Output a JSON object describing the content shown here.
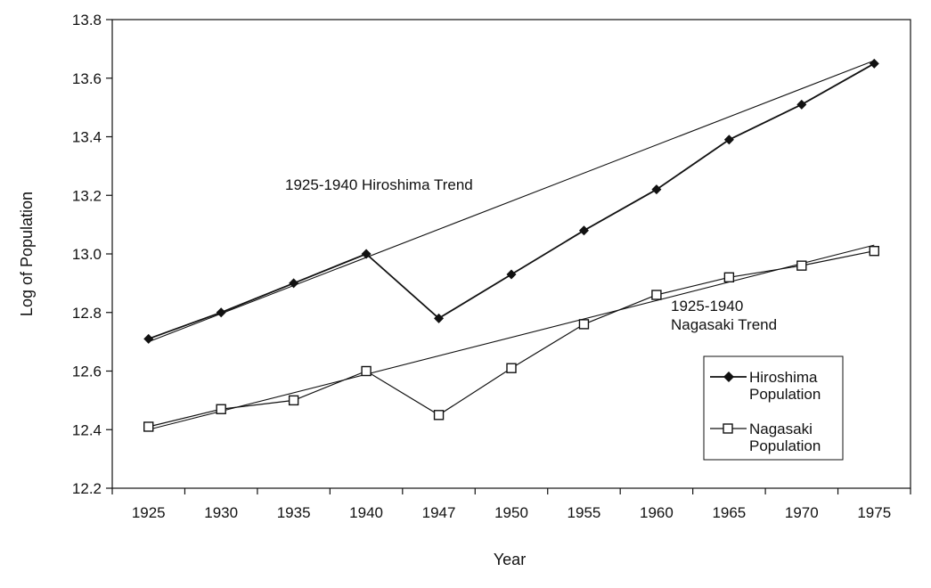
{
  "chart_data": {
    "type": "line",
    "title": "",
    "xlabel": "Year",
    "ylabel": "Log of Population",
    "categories": [
      "1925",
      "1930",
      "1935",
      "1940",
      "1947",
      "1950",
      "1955",
      "1960",
      "1965",
      "1970",
      "1975"
    ],
    "ylim": [
      12.2,
      13.8
    ],
    "yticks": [
      "12.2",
      "12.4",
      "12.6",
      "12.8",
      "13.0",
      "13.2",
      "13.4",
      "13.6",
      "13.8"
    ],
    "grid": false,
    "series": [
      {
        "name": "Hiroshima Population",
        "marker": "filled-diamond",
        "values": [
          12.71,
          12.8,
          12.9,
          13.0,
          12.78,
          12.93,
          13.08,
          13.22,
          13.39,
          13.51,
          13.65
        ]
      },
      {
        "name": "Nagasaki Population",
        "marker": "open-square",
        "values": [
          12.41,
          12.47,
          12.5,
          12.6,
          12.45,
          12.61,
          12.76,
          12.86,
          12.92,
          12.96,
          13.01
        ]
      }
    ],
    "trend_lines": [
      {
        "label": "1925-1940 Hiroshima Trend",
        "start": 12.7,
        "end": 13.66
      },
      {
        "label_line1": "1925-1940",
        "label_line2": "Nagasaki Trend",
        "start": 12.4,
        "end": 13.03
      }
    ],
    "legend": {
      "placement": "right",
      "entries": [
        {
          "line1": "Hiroshima",
          "line2": "Population"
        },
        {
          "line1": "Nagasaki",
          "line2": "Population"
        }
      ]
    }
  }
}
